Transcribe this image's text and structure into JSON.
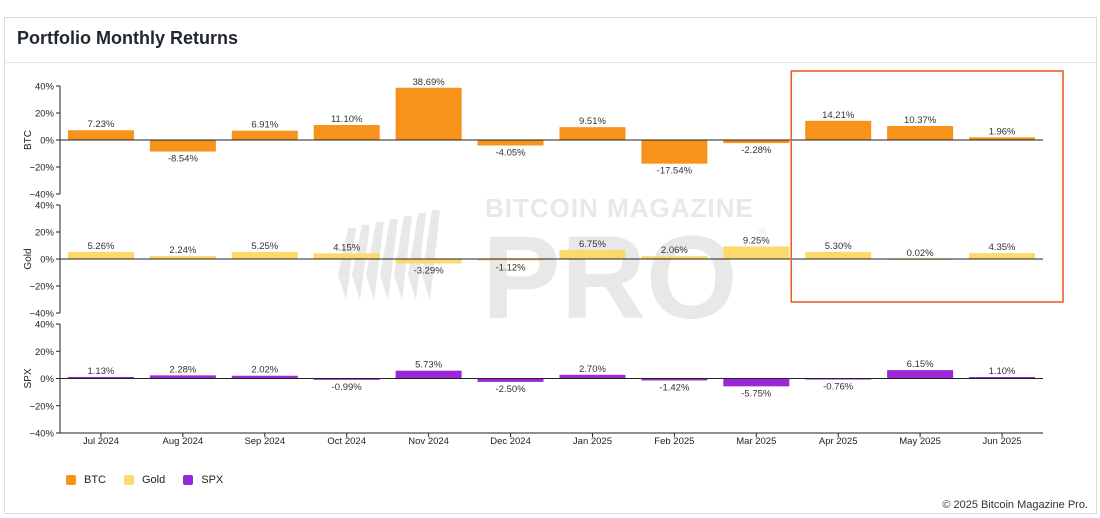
{
  "header": {
    "title": "Portfolio Monthly Returns"
  },
  "watermark": {
    "line1": "BITCOIN MAGAZINE",
    "line2": "PRO",
    "registered": "®"
  },
  "footer": {
    "copyright": "© 2025 Bitcoin Magazine Pro."
  },
  "chart_data": {
    "type": "bar",
    "categories": [
      "Jul 2024",
      "Aug 2024",
      "Sep 2024",
      "Oct 2024",
      "Nov 2024",
      "Dec 2024",
      "Jan 2025",
      "Feb 2025",
      "Mar 2025",
      "Apr 2025",
      "May 2025",
      "Jun 2025"
    ],
    "ylim": [
      -40,
      40
    ],
    "yticks": [
      "40%",
      "20%",
      "0%",
      "−20%",
      "−40%"
    ],
    "series": [
      {
        "name": "BTC",
        "color": "#f7931a",
        "values": [
          7.23,
          -8.54,
          6.91,
          11.1,
          38.69,
          -4.05,
          9.51,
          -17.54,
          -2.28,
          14.21,
          10.37,
          1.96
        ],
        "labels": [
          "7.23%",
          "-8.54%",
          "6.91%",
          "11.10%",
          "38.69%",
          "-4.05%",
          "9.51%",
          "-17.54%",
          "-2.28%",
          "14.21%",
          "10.37%",
          "1.96%"
        ]
      },
      {
        "name": "Gold",
        "color": "#fcd96a",
        "values": [
          5.26,
          2.24,
          5.25,
          4.15,
          -3.29,
          -1.12,
          6.75,
          2.06,
          9.25,
          5.3,
          0.02,
          4.35
        ],
        "labels": [
          "5.26%",
          "2.24%",
          "5.25%",
          "4.15%",
          "-3.29%",
          "-1.12%",
          "6.75%",
          "2.06%",
          "9.25%",
          "5.30%",
          "0.02%",
          "4.35%"
        ]
      },
      {
        "name": "SPX",
        "color": "#9b27d6",
        "values": [
          1.13,
          2.28,
          2.02,
          -0.99,
          5.73,
          -2.5,
          2.7,
          -1.42,
          -5.75,
          -0.76,
          6.15,
          1.1
        ],
        "labels": [
          "1.13%",
          "2.28%",
          "2.02%",
          "-0.99%",
          "5.73%",
          "-2.50%",
          "2.70%",
          "-1.42%",
          "-5.75%",
          "-0.76%",
          "6.15%",
          "1.10%"
        ]
      }
    ],
    "highlight": {
      "from": "Apr 2025",
      "to": "Jun 2025",
      "color": "#e8612c"
    },
    "legend_position": "bottom-left",
    "grid": false
  }
}
